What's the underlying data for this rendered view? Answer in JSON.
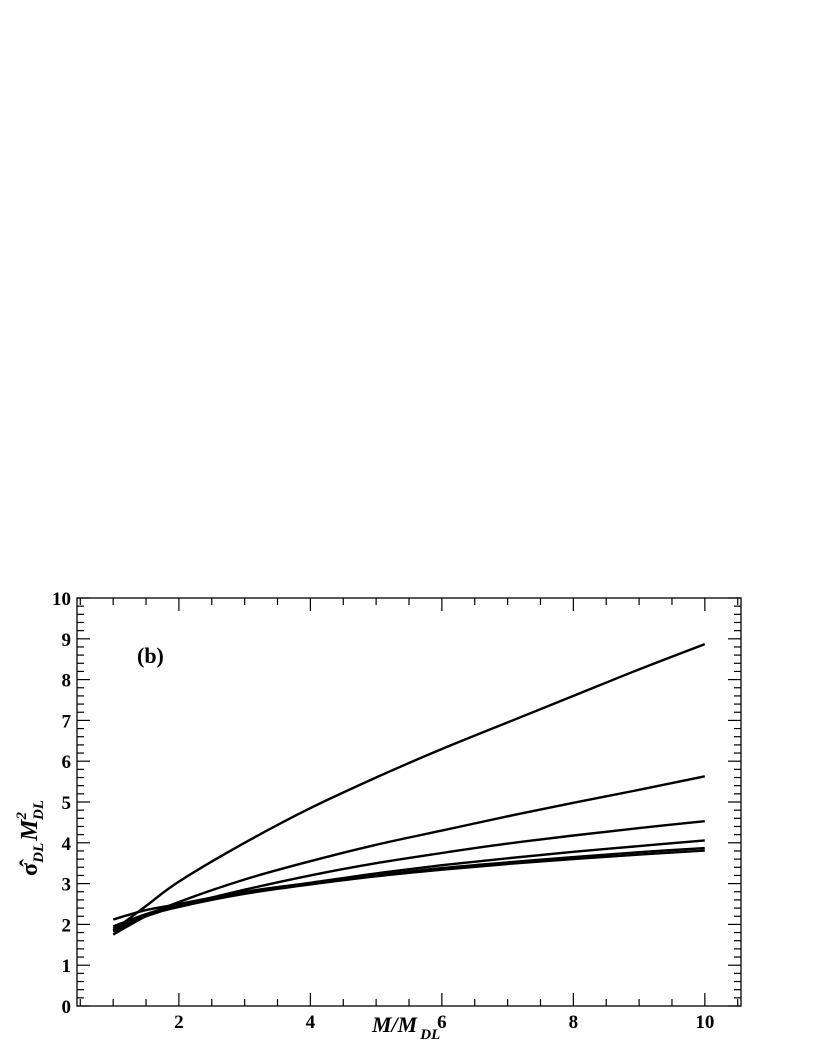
{
  "chart_data": {
    "type": "line",
    "panel_label": "(b)",
    "xlabel": {
      "main": "M/M",
      "sub": "DL"
    },
    "ylabel": {
      "hat": "σ̂",
      "sub1": "DL",
      "mid": "M",
      "sup": "2",
      "sub2": "DL"
    },
    "xlim": [
      0.45,
      10.55
    ],
    "ylim": [
      0,
      10
    ],
    "x_major_ticks": [
      2,
      4,
      6,
      8,
      10
    ],
    "x_tick_labels": [
      "2",
      "4",
      "6",
      "8",
      "10"
    ],
    "y_major_ticks": [
      0,
      1,
      2,
      3,
      4,
      5,
      6,
      7,
      8,
      9,
      10
    ],
    "y_tick_labels": [
      "0",
      "1",
      "2",
      "3",
      "4",
      "5",
      "6",
      "7",
      "8",
      "9",
      "10"
    ],
    "grid": false,
    "legend": "none",
    "line_color": "#000000",
    "series": [
      {
        "x": [
          1,
          1.5,
          2,
          3,
          4,
          5,
          6,
          7,
          8,
          9,
          10
        ],
        "values": [
          1.85,
          2.45,
          3.05,
          4.0,
          4.85,
          5.6,
          6.3,
          6.95,
          7.6,
          8.25,
          8.87
        ]
      },
      {
        "x": [
          1,
          1.5,
          2,
          3,
          4,
          5,
          6,
          7,
          8,
          9,
          10
        ],
        "values": [
          1.75,
          2.2,
          2.55,
          3.1,
          3.55,
          3.95,
          4.3,
          4.65,
          4.98,
          5.3,
          5.63
        ]
      },
      {
        "x": [
          1,
          1.5,
          2,
          3,
          4,
          5,
          6,
          7,
          8,
          9,
          10
        ],
        "values": [
          1.9,
          2.2,
          2.45,
          2.85,
          3.2,
          3.5,
          3.75,
          3.98,
          4.18,
          4.36,
          4.53
        ]
      },
      {
        "x": [
          1,
          1.5,
          2,
          3,
          4,
          5,
          6,
          7,
          8,
          9,
          10
        ],
        "values": [
          2.12,
          2.35,
          2.5,
          2.8,
          3.02,
          3.25,
          3.45,
          3.62,
          3.78,
          3.92,
          4.06
        ]
      },
      {
        "x": [
          1,
          1.5,
          2,
          3,
          4,
          5,
          6,
          7,
          8,
          9,
          10
        ],
        "values": [
          1.95,
          2.25,
          2.48,
          2.78,
          3.0,
          3.2,
          3.38,
          3.52,
          3.65,
          3.77,
          3.87
        ]
      },
      {
        "x": [
          1,
          1.5,
          2,
          3,
          4,
          5,
          6,
          7,
          8,
          9,
          10
        ],
        "values": [
          1.82,
          2.2,
          2.43,
          2.75,
          2.98,
          3.18,
          3.34,
          3.48,
          3.6,
          3.71,
          3.81
        ]
      }
    ]
  }
}
